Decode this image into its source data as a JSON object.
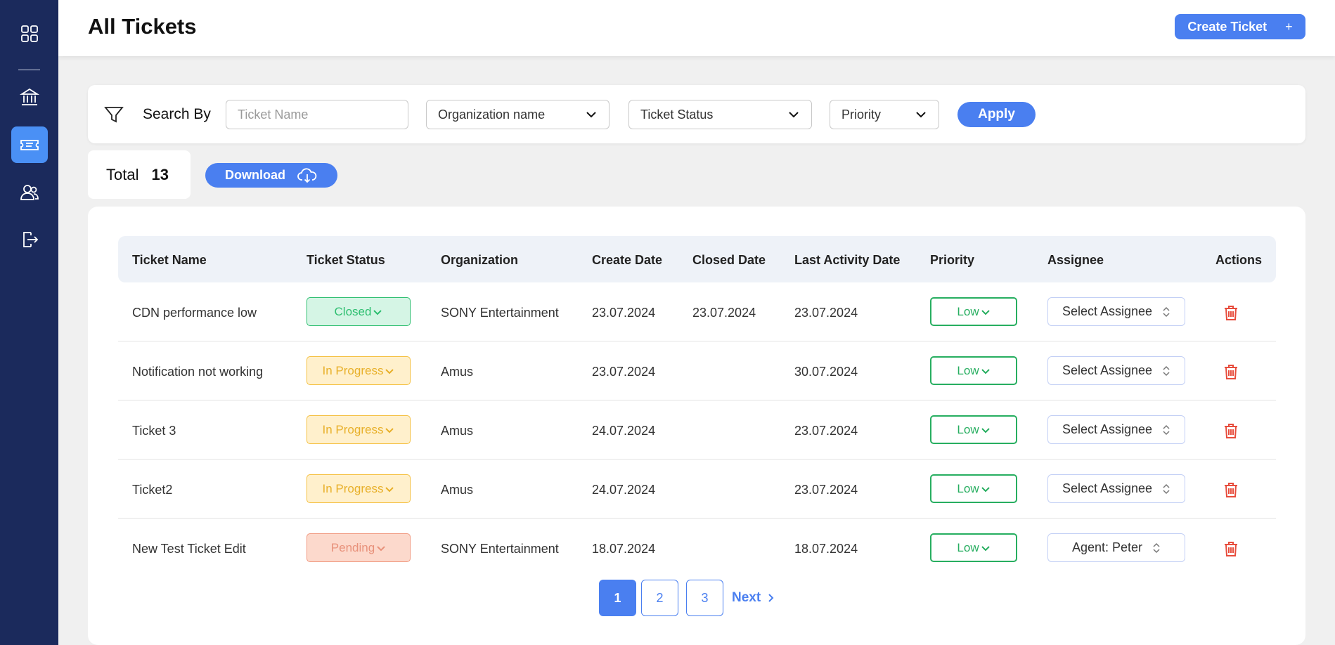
{
  "sidebar": {
    "items": [
      {
        "icon": "grid-icon"
      },
      {
        "icon": "bank-icon"
      },
      {
        "icon": "ticket-icon",
        "active": true
      },
      {
        "icon": "users-icon"
      },
      {
        "icon": "logout-icon"
      }
    ]
  },
  "header": {
    "title": "All Tickets",
    "create_button": "Create Ticket",
    "create_plus": "+"
  },
  "filter": {
    "label": "Search By",
    "ticket_name_placeholder": "Ticket Name",
    "organization": "Organization name",
    "status": "Ticket Status",
    "priority": "Priority",
    "apply": "Apply"
  },
  "summary": {
    "total_label": "Total",
    "total_value": "13",
    "download": "Download"
  },
  "table": {
    "columns": [
      "Ticket Name",
      "Ticket Status",
      "Organization",
      "Create Date",
      "Closed Date",
      "Last Activity Date",
      "Priority",
      "Assignee",
      "Actions"
    ],
    "rows": [
      {
        "name": "CDN performance low",
        "status": "Closed",
        "status_kind": "closed",
        "organization": "SONY Entertainment",
        "create_date": "23.07.2024",
        "closed_date": "23.07.2024",
        "last_activity": "23.07.2024",
        "priority": "Low",
        "assignee": "Select Assignee"
      },
      {
        "name": "Notification not working",
        "status": "In Progress",
        "status_kind": "progress",
        "organization": "Amus",
        "create_date": "23.07.2024",
        "closed_date": "",
        "last_activity": "30.07.2024",
        "priority": "Low",
        "assignee": "Select Assignee"
      },
      {
        "name": "Ticket 3",
        "status": "In Progress",
        "status_kind": "progress",
        "organization": "Amus",
        "create_date": "24.07.2024",
        "closed_date": "",
        "last_activity": "23.07.2024",
        "priority": "Low",
        "assignee": "Select Assignee"
      },
      {
        "name": "Ticket2",
        "status": "In Progress",
        "status_kind": "progress",
        "organization": "Amus",
        "create_date": "24.07.2024",
        "closed_date": "",
        "last_activity": "23.07.2024",
        "priority": "Low",
        "assignee": "Select Assignee"
      },
      {
        "name": "New Test Ticket Edit",
        "status": "Pending",
        "status_kind": "pending",
        "organization": "SONY Entertainment",
        "create_date": "18.07.2024",
        "closed_date": "",
        "last_activity": "18.07.2024",
        "priority": "Low",
        "assignee": "Agent: Peter"
      }
    ]
  },
  "pagination": {
    "pages": [
      "1",
      "2",
      "3"
    ],
    "current": "1",
    "next": "Next"
  },
  "colors": {
    "sidebar": "#1b2a5c",
    "accent": "#4a7ff0",
    "closed": "#2fbf71",
    "progress": "#f5c040",
    "pending": "#f19a82",
    "delete": "#e74c3c"
  }
}
